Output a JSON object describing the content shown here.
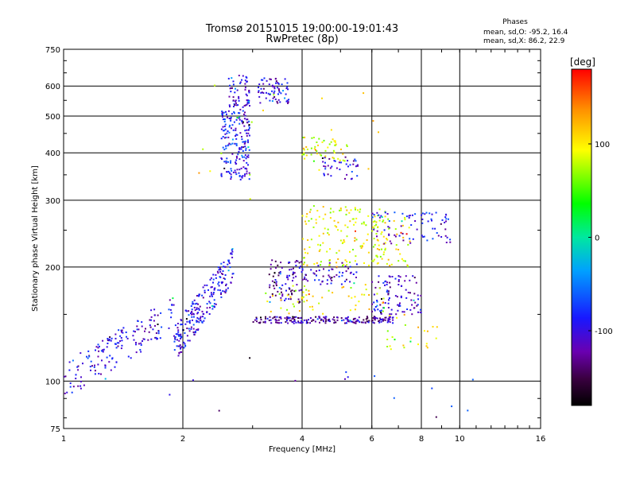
{
  "chart_data": {
    "type": "scatter",
    "title": "Tromsø 20151015 19:00:00-19:01:43",
    "subtitle": "RwPretec (8p)",
    "xlabel": "Frequency [MHz]",
    "ylabel": "Stationary phase Virtual Height [km]",
    "x_scale": "log",
    "y_scale": "log",
    "xlim": [
      1,
      16
    ],
    "ylim": [
      75,
      750
    ],
    "x_ticks": [
      "1",
      "2",
      "4",
      "6",
      "8",
      "10",
      "16"
    ],
    "y_ticks": [
      "75",
      "100",
      "200",
      "300",
      "400",
      "500",
      "600",
      "750"
    ],
    "grid": true,
    "stats": {
      "heading": "Phases",
      "line_o": "mean, sd,O: -95.2, 16.4",
      "line_x": "mean, sd,X:  86.2, 22.9"
    },
    "colorbar": {
      "label": "[deg]",
      "range": [
        -180,
        180
      ],
      "ticks": [
        "100",
        "0",
        "-100"
      ],
      "tick_values": [
        100,
        0,
        -100
      ]
    },
    "clusters": [
      {
        "f": [
          1.0,
          1.9
        ],
        "h": [
          100,
          150
        ],
        "phase": -100,
        "count": 160,
        "shape": "ramp"
      },
      {
        "f": [
          1.9,
          2.7
        ],
        "h": [
          125,
          205
        ],
        "phase": -95,
        "count": 230,
        "shape": "ramp"
      },
      {
        "f": [
          2.5,
          2.95
        ],
        "h": [
          340,
          520
        ],
        "phase": -90,
        "count": 190
      },
      {
        "f": [
          2.6,
          2.95
        ],
        "h": [
          520,
          640
        ],
        "phase": -110,
        "count": 60
      },
      {
        "f": [
          3.1,
          3.7
        ],
        "h": [
          540,
          630
        ],
        "phase": -105,
        "count": 70
      },
      {
        "f": [
          3.0,
          6.8
        ],
        "h": [
          142,
          148
        ],
        "phase": -120,
        "count": 200
      },
      {
        "f": [
          3.3,
          4.0
        ],
        "h": [
          160,
          210
        ],
        "phase": -120,
        "count": 90
      },
      {
        "f": [
          4.0,
          5.5
        ],
        "h": [
          180,
          205
        ],
        "phase": -105,
        "count": 60
      },
      {
        "f": [
          4.0,
          6.6
        ],
        "h": [
          200,
          290
        ],
        "phase": 95,
        "count": 150
      },
      {
        "f": [
          4.0,
          5.2
        ],
        "h": [
          380,
          440
        ],
        "phase": 90,
        "count": 50
      },
      {
        "f": [
          4.5,
          5.6
        ],
        "h": [
          340,
          390
        ],
        "phase": -100,
        "count": 40
      },
      {
        "f": [
          6.0,
          8.0
        ],
        "h": [
          150,
          190
        ],
        "phase": -105,
        "count": 100
      },
      {
        "f": [
          6.0,
          9.5
        ],
        "h": [
          230,
          280
        ],
        "phase": -95,
        "count": 80
      },
      {
        "f": [
          6.0,
          7.5
        ],
        "h": [
          200,
          270
        ],
        "phase": 90,
        "count": 50
      },
      {
        "f": [
          3.2,
          6.5
        ],
        "h": [
          150,
          180
        ],
        "phase": 95,
        "count": 60
      },
      {
        "f": [
          6.5,
          9.0
        ],
        "h": [
          120,
          150
        ],
        "phase": 95,
        "count": 25
      },
      {
        "f": [
          2.1,
          7.0
        ],
        "h": [
          300,
          640
        ],
        "phase": 100,
        "count": 20
      },
      {
        "f": [
          1.0,
          13.0
        ],
        "h": [
          78,
          120
        ],
        "phase": -90,
        "count": 18
      }
    ]
  }
}
